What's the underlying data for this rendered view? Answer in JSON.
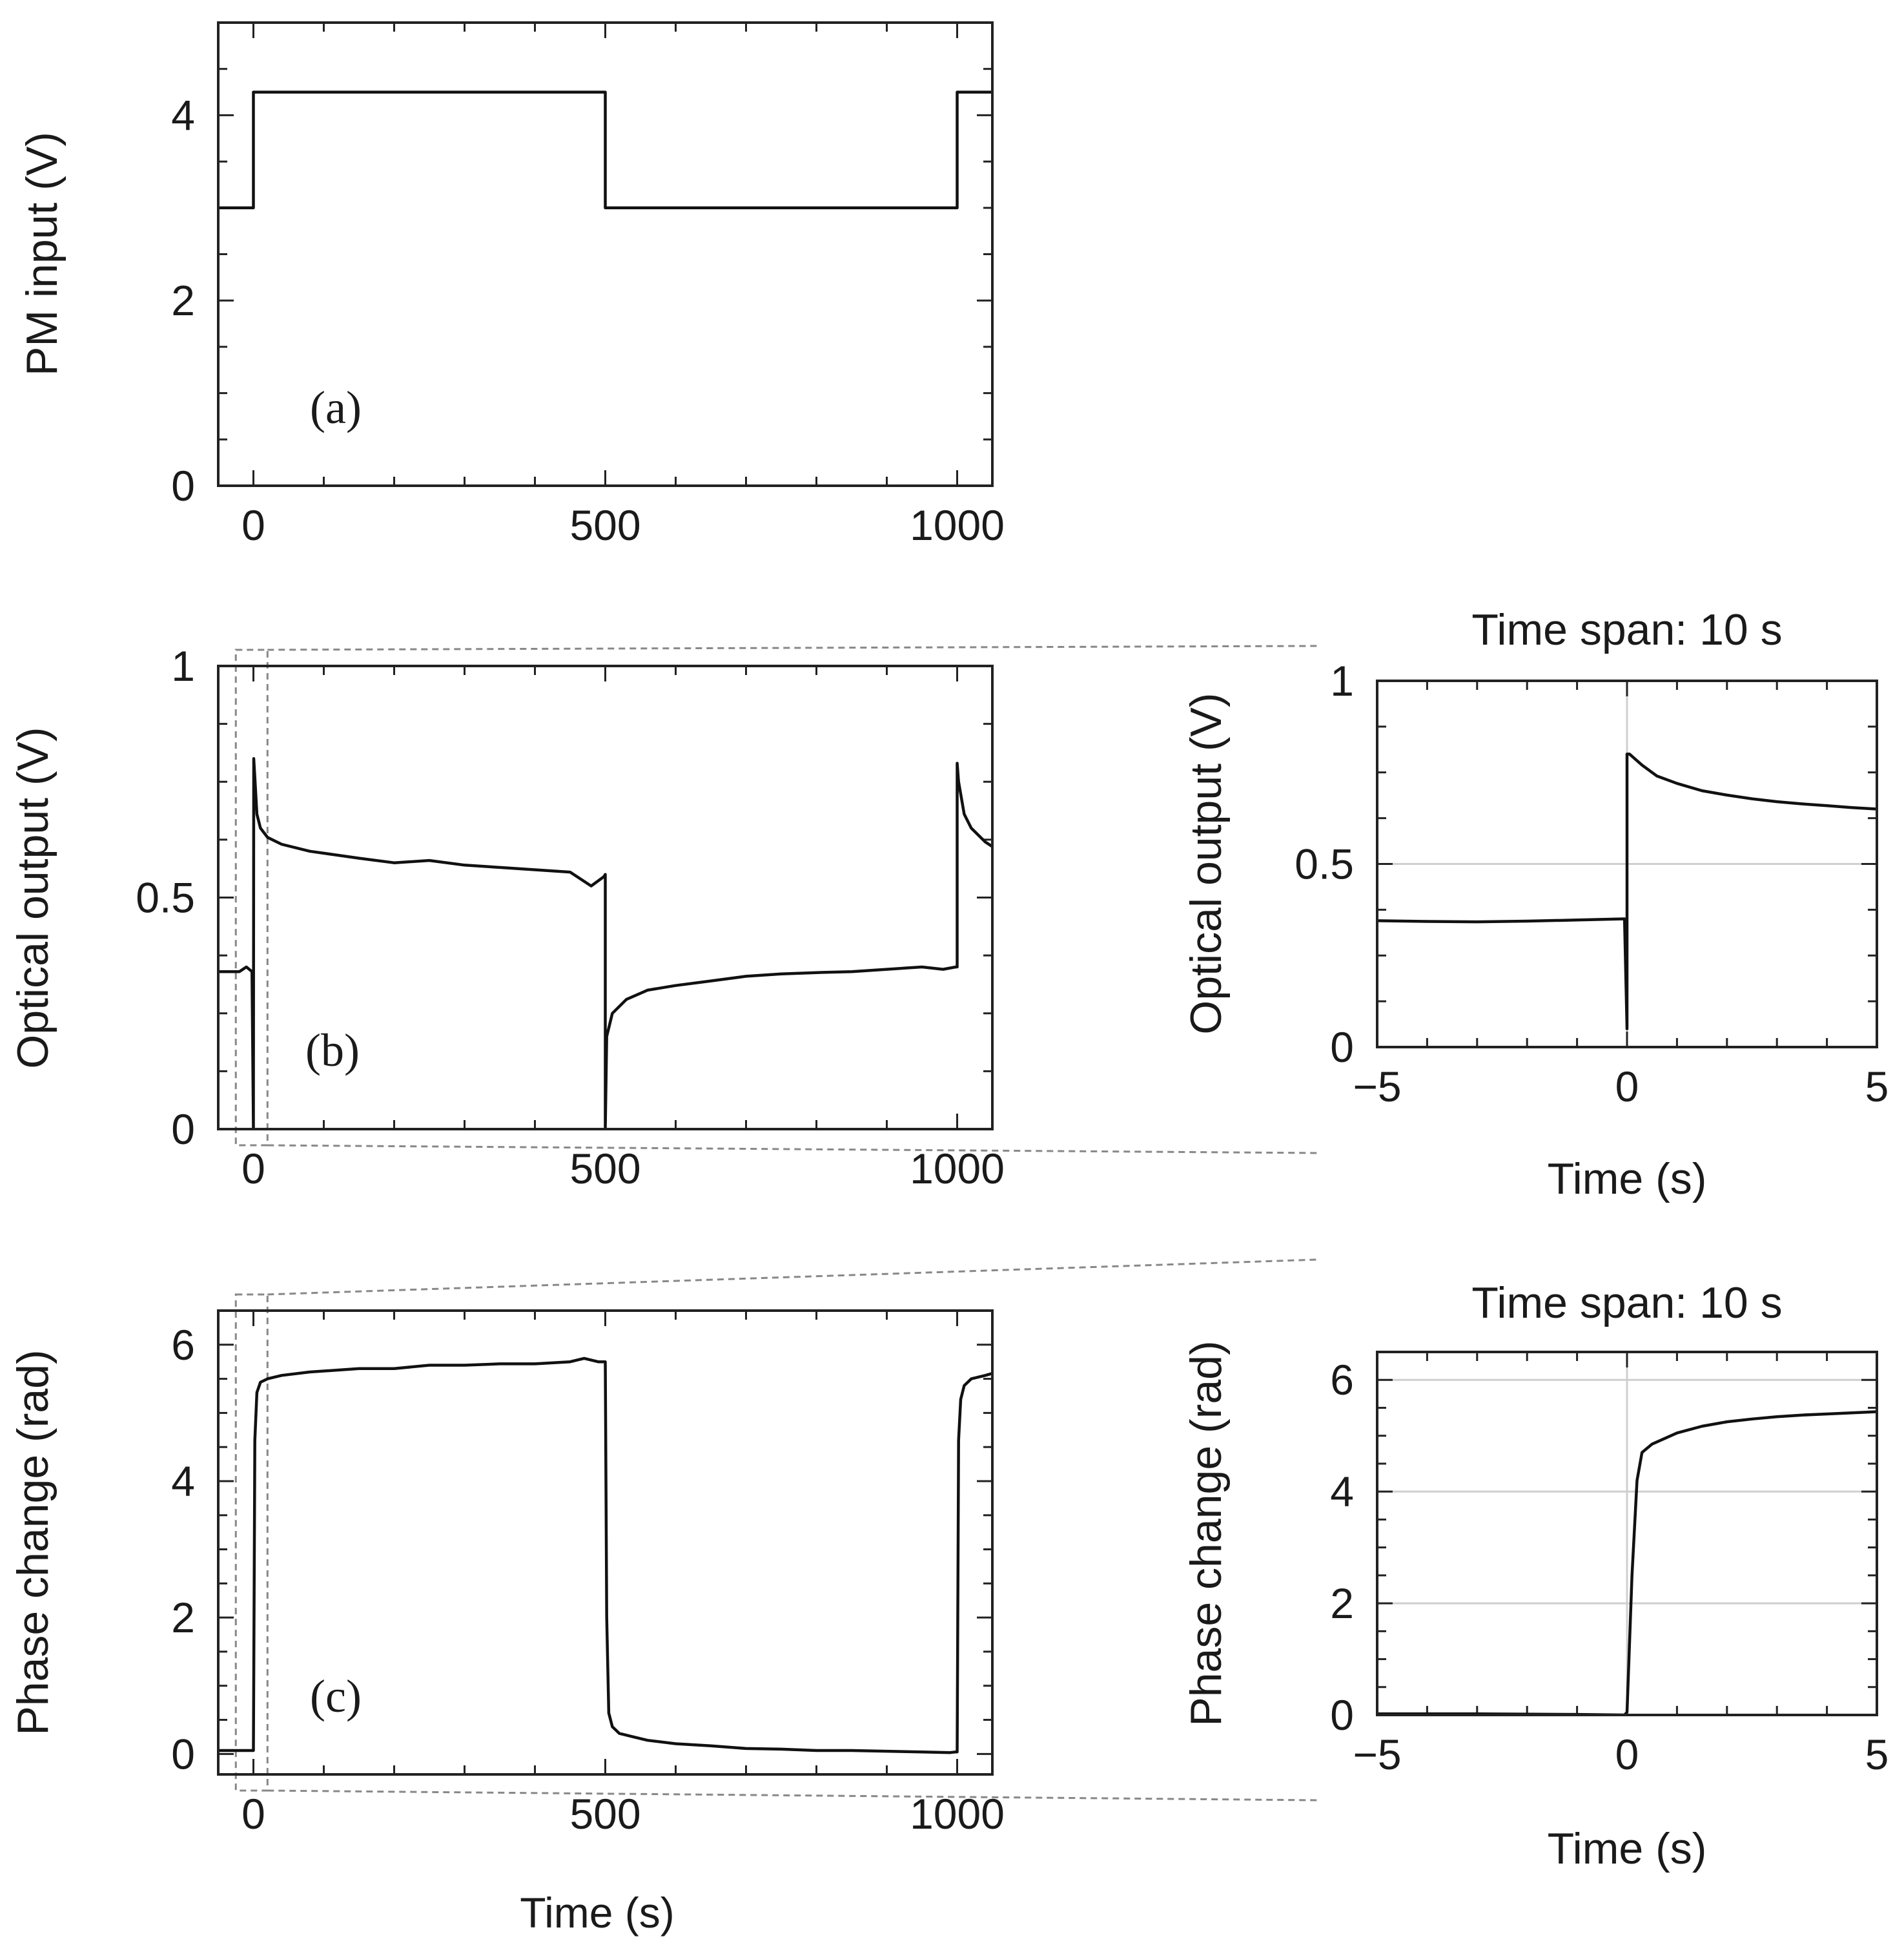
{
  "figure": {
    "xlabel_bottom": "Time (s)",
    "zoom_title": "Time span: 10 s"
  },
  "chart_data": [
    {
      "id": "a",
      "type": "line",
      "panel_label": "(a)",
      "ylabel": "PM input (V)",
      "xlabel": "",
      "xlim": [
        -50,
        1050
      ],
      "ylim": [
        0,
        5
      ],
      "xticks": [
        0,
        500,
        1000
      ],
      "xtick_labels": [
        "0",
        "500",
        "1000"
      ],
      "yticks": [
        0,
        2,
        4
      ],
      "ytick_labels": [
        "0",
        "2",
        "4"
      ],
      "grid": false,
      "series": [
        {
          "name": "PM input",
          "x": [
            -50,
            0,
            0,
            500,
            500,
            1000,
            1000,
            1050
          ],
          "y": [
            3,
            3,
            4.25,
            4.25,
            3,
            3,
            4.25,
            4.25
          ]
        }
      ]
    },
    {
      "id": "b",
      "type": "line",
      "panel_label": "(b)",
      "ylabel": "Optical output (V)",
      "xlabel": "",
      "xlim": [
        -50,
        1050
      ],
      "ylim": [
        0,
        1
      ],
      "xticks": [
        0,
        500,
        1000
      ],
      "xtick_labels": [
        "0",
        "500",
        "1000"
      ],
      "yticks": [
        0,
        0.5,
        1
      ],
      "ytick_labels": [
        "0",
        "0.5",
        "1"
      ],
      "grid": false,
      "zoom_window": [
        -25,
        20
      ],
      "series": [
        {
          "name": "Optical output",
          "x": [
            -50,
            -20,
            -10,
            -2,
            0,
            0.5,
            2,
            5,
            10,
            20,
            40,
            80,
            150,
            200,
            250,
            300,
            350,
            400,
            450,
            480,
            498,
            500,
            500,
            502,
            510,
            530,
            560,
            600,
            650,
            700,
            750,
            800,
            850,
            900,
            950,
            980,
            998,
            1000,
            1000,
            1002,
            1010,
            1020,
            1040,
            1050
          ],
          "y": [
            0.34,
            0.34,
            0.35,
            0.34,
            0.0,
            0.8,
            0.76,
            0.68,
            0.65,
            0.63,
            0.615,
            0.6,
            0.585,
            0.575,
            0.58,
            0.57,
            0.565,
            0.56,
            0.555,
            0.525,
            0.545,
            0.55,
            0.0,
            0.2,
            0.25,
            0.28,
            0.3,
            0.31,
            0.32,
            0.33,
            0.335,
            0.338,
            0.34,
            0.345,
            0.35,
            0.345,
            0.35,
            0.35,
            0.79,
            0.75,
            0.68,
            0.65,
            0.62,
            0.61
          ]
        }
      ]
    },
    {
      "id": "b-zoom",
      "type": "line",
      "title": "Time span: 10 s",
      "ylabel": "Optical output (V)",
      "xlabel": "Time (s)",
      "xlim": [
        -5,
        5
      ],
      "ylim": [
        0,
        1
      ],
      "xticks": [
        -5,
        0,
        5
      ],
      "xtick_labels": [
        "−5",
        "0",
        "5"
      ],
      "yticks": [
        0,
        0.5,
        1
      ],
      "ytick_labels": [
        "0",
        "0.5",
        "1"
      ],
      "grid": true,
      "series": [
        {
          "name": "Optical output (zoom)",
          "x": [
            -5,
            -4,
            -3,
            -2,
            -1,
            -0.05,
            0,
            0,
            0.05,
            0.3,
            0.6,
            1,
            1.5,
            2,
            2.5,
            3,
            3.5,
            4,
            4.5,
            5
          ],
          "y": [
            0.345,
            0.343,
            0.342,
            0.344,
            0.347,
            0.35,
            0.05,
            0.8,
            0.8,
            0.77,
            0.74,
            0.72,
            0.7,
            0.688,
            0.678,
            0.67,
            0.664,
            0.659,
            0.654,
            0.65
          ]
        }
      ]
    },
    {
      "id": "c",
      "type": "line",
      "panel_label": "(c)",
      "ylabel": "Phase change (rad)",
      "xlabel": "Time (s)",
      "xlim": [
        -50,
        1050
      ],
      "ylim": [
        -0.3,
        6.5
      ],
      "xticks": [
        0,
        500,
        1000
      ],
      "xtick_labels": [
        "0",
        "500",
        "1000"
      ],
      "yticks": [
        0,
        2,
        4,
        6
      ],
      "ytick_labels": [
        "0",
        "2",
        "4",
        "6"
      ],
      "grid": false,
      "zoom_window": [
        -25,
        20
      ],
      "series": [
        {
          "name": "Phase change",
          "x": [
            -50,
            -2,
            0,
            2,
            5,
            10,
            20,
            40,
            80,
            150,
            200,
            250,
            300,
            350,
            400,
            450,
            470,
            490,
            500,
            502,
            505,
            510,
            520,
            540,
            560,
            600,
            650,
            700,
            750,
            800,
            850,
            900,
            950,
            990,
            998,
            1000,
            1002,
            1005,
            1010,
            1020,
            1040,
            1050
          ],
          "y": [
            0.05,
            0.05,
            0.05,
            4.6,
            5.3,
            5.45,
            5.5,
            5.55,
            5.6,
            5.65,
            5.65,
            5.7,
            5.7,
            5.72,
            5.72,
            5.75,
            5.8,
            5.75,
            5.75,
            2.0,
            0.6,
            0.4,
            0.3,
            0.25,
            0.2,
            0.15,
            0.12,
            0.08,
            0.07,
            0.05,
            0.05,
            0.04,
            0.03,
            0.02,
            0.03,
            0.03,
            4.6,
            5.2,
            5.4,
            5.5,
            5.55,
            5.58
          ]
        }
      ]
    },
    {
      "id": "c-zoom",
      "type": "line",
      "title": "Time span: 10 s",
      "ylabel": "Phase change (rad)",
      "xlabel": "Time (s)",
      "xlim": [
        -5,
        5
      ],
      "ylim": [
        0,
        6.5
      ],
      "xticks": [
        -5,
        0,
        5
      ],
      "xtick_labels": [
        "−5",
        "0",
        "5"
      ],
      "yticks": [
        0,
        2,
        4,
        6
      ],
      "ytick_labels": [
        "0",
        "2",
        "4",
        "6"
      ],
      "grid": true,
      "series": [
        {
          "name": "Phase change (zoom)",
          "x": [
            -5,
            -3,
            -1,
            -0.05,
            0,
            0.1,
            0.2,
            0.3,
            0.5,
            1,
            1.5,
            2,
            2.5,
            3,
            3.5,
            4,
            4.5,
            5
          ],
          "y": [
            0.02,
            0.02,
            0.01,
            0.0,
            0.05,
            2.5,
            4.2,
            4.7,
            4.85,
            5.05,
            5.17,
            5.25,
            5.3,
            5.34,
            5.37,
            5.39,
            5.41,
            5.43
          ]
        }
      ]
    }
  ]
}
